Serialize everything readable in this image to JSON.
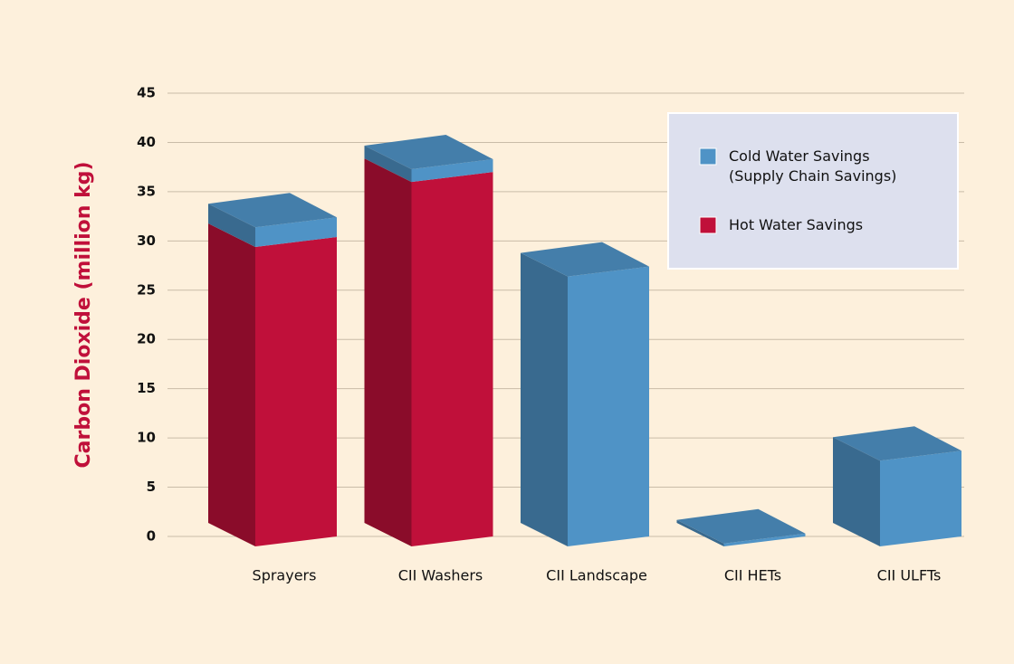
{
  "chart_data": {
    "type": "bar3d_stacked",
    "y_label": "Carbon Dioxide (million kg)",
    "categories": [
      "Sprayers",
      "CII Washers",
      "CII Landscape",
      "CII HETs",
      "CII ULFTs"
    ],
    "series": [
      {
        "name": "Cold Water Savings\n(Supply Chain Savings)",
        "color": "#4f93c6",
        "values": [
          2,
          1.3,
          27.4,
          0.3,
          8.7
        ]
      },
      {
        "name": "Hot Water Savings",
        "color": "#c0103a",
        "values": [
          30.4,
          37,
          0,
          0,
          0
        ]
      }
    ],
    "stack_order": [
      1,
      0
    ],
    "ylim": [
      0,
      45
    ],
    "yticks": [
      0,
      5,
      10,
      15,
      20,
      25,
      30,
      35,
      40,
      45
    ],
    "grid": true
  }
}
